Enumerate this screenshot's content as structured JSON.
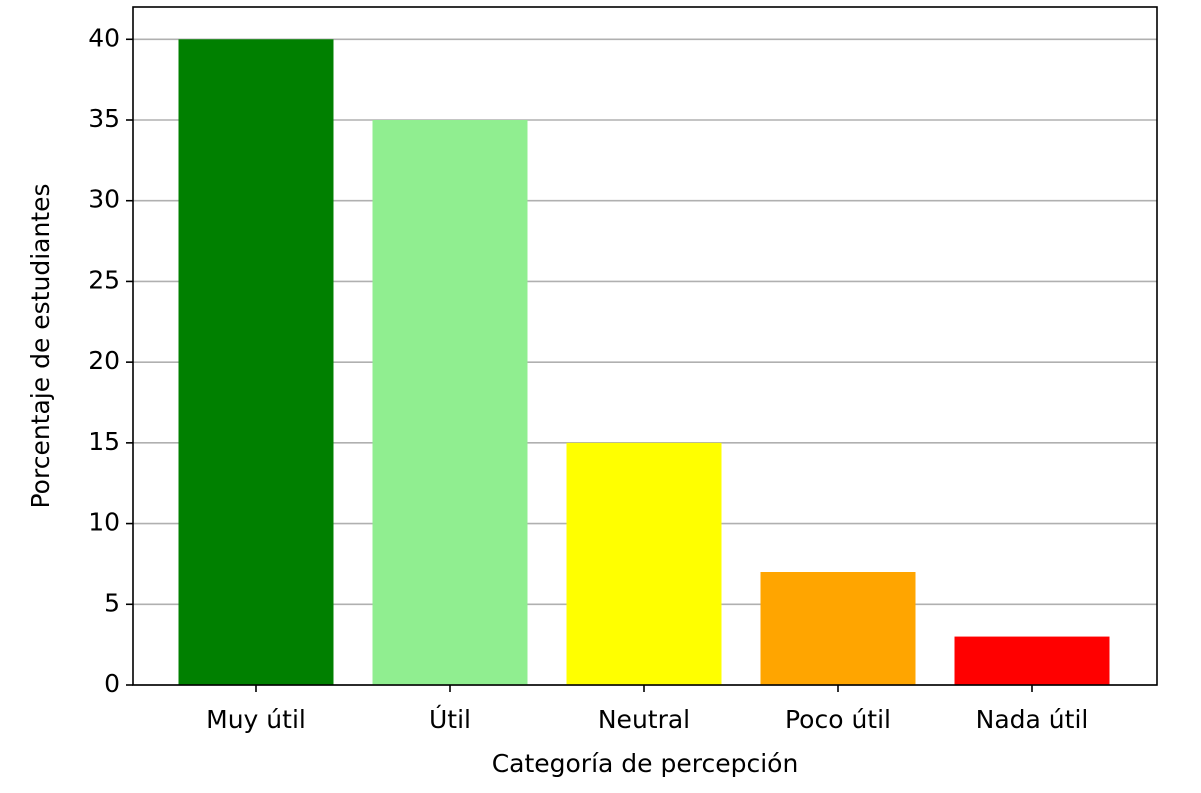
{
  "chart_data": {
    "type": "bar",
    "xlabel": "Categoría de percepción",
    "ylabel": "Porcentaje de estudiantes",
    "categories": [
      "Muy útil",
      "Útil",
      "Neutral",
      "Poco útil",
      "Nada útil"
    ],
    "values": [
      40,
      35,
      15,
      7,
      3
    ],
    "colors": [
      "#008000",
      "#90ee90",
      "#ffff00",
      "#ffa500",
      "#ff0000"
    ],
    "ylim": [
      0,
      42
    ],
    "yticks": [
      0,
      5,
      10,
      15,
      20,
      25,
      30,
      35,
      40
    ],
    "grid": true
  }
}
